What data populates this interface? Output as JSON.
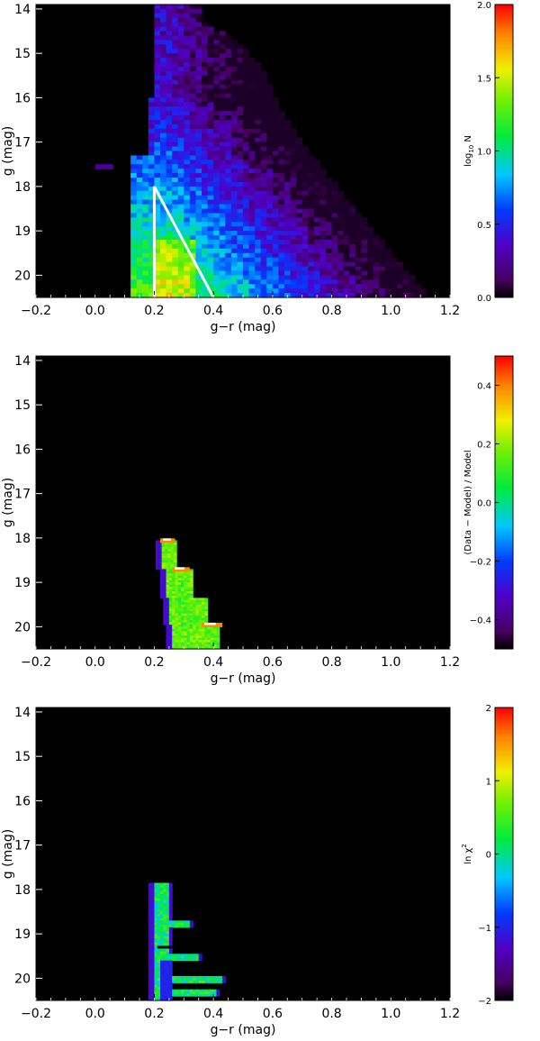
{
  "chart_data": [
    {
      "type": "heatmap",
      "xlabel": "g−r (mag)",
      "ylabel": "g (mag)",
      "xlim": [
        -0.2,
        1.2
      ],
      "ylim": [
        20.5,
        13.9
      ],
      "x_ticks": [
        "−0.2",
        "0.0",
        "0.2",
        "0.4",
        "0.6",
        "0.8",
        "1.0",
        "1.2"
      ],
      "y_ticks": [
        "14",
        "15",
        "16",
        "17",
        "18",
        "19",
        "20"
      ],
      "colorbar": {
        "label_main": "log",
        "label_sub": "10",
        "label_tail": " N",
        "range": [
          0.0,
          2.0
        ],
        "ticks": [
          "0.0",
          "0.5",
          "1.0",
          "1.5",
          "2.0"
        ]
      },
      "overlay_wedge": {
        "apex": [
          0.2,
          18.0
        ],
        "base": [
          [
            0.2,
            20.5
          ],
          [
            0.4,
            20.5
          ]
        ],
        "color": "#ffffff"
      },
      "density_model": {
        "edge_blue": [
          0.17,
          0.12
        ],
        "edge_red": [
          [
            14.3,
            0.36
          ],
          [
            14.8,
            0.5
          ],
          [
            15.5,
            0.58
          ],
          [
            16.2,
            0.62
          ],
          [
            17.2,
            0.72
          ],
          [
            18.5,
            0.88
          ],
          [
            19.5,
            1.0
          ],
          [
            20.5,
            1.13
          ]
        ],
        "peak": [
          0.27,
          20.2
        ],
        "peak_value": 2.0
      }
    },
    {
      "type": "heatmap",
      "xlabel": "g−r (mag)",
      "ylabel": "g (mag)",
      "xlim": [
        -0.2,
        1.2
      ],
      "ylim": [
        20.5,
        13.9
      ],
      "x_ticks": [
        "−0.2",
        "0.0",
        "0.2",
        "0.4",
        "0.6",
        "0.8",
        "1.0",
        "1.2"
      ],
      "y_ticks": [
        "14",
        "15",
        "16",
        "17",
        "18",
        "19",
        "20"
      ],
      "colorbar": {
        "label_main": "(Data − Model) / Model",
        "range": [
          -0.5,
          0.5
        ],
        "ticks": [
          "−0.4",
          "−0.2",
          "0.0",
          "0.2",
          "0.4"
        ]
      },
      "region_value": 0.15,
      "steps": [
        [
          18.05,
          0.205,
          0.27
        ],
        [
          18.7,
          0.22,
          0.33
        ],
        [
          19.35,
          0.23,
          0.38
        ],
        [
          19.95,
          0.24,
          0.42
        ],
        [
          20.5,
          0.24,
          0.43
        ]
      ],
      "highlights": [
        [
          18.05,
          0.22,
          0.27
        ],
        [
          18.7,
          0.26,
          0.32
        ],
        [
          19.95,
          0.36,
          0.43
        ]
      ]
    },
    {
      "type": "heatmap",
      "xlabel": "g−r (mag)",
      "ylabel": "g (mag)",
      "xlim": [
        -0.2,
        1.2
      ],
      "ylim": [
        20.5,
        13.9
      ],
      "x_ticks": [
        "−0.2",
        "0.0",
        "0.2",
        "0.4",
        "0.6",
        "0.8",
        "1.0",
        "1.2"
      ],
      "y_ticks": [
        "14",
        "15",
        "16",
        "17",
        "18",
        "19",
        "20"
      ],
      "colorbar": {
        "label_main": "ln χ",
        "label_sup": "2",
        "range": [
          -2.0,
          2.0
        ],
        "ticks": [
          "−2",
          "−1",
          "0",
          "1",
          "2"
        ]
      },
      "region": {
        "g_top": 17.85,
        "g_bottom": 20.5,
        "x_left": 0.18,
        "x_right": 0.26
      },
      "spikes": [
        [
          18.75,
          0.33
        ],
        [
          19.5,
          0.36
        ],
        [
          20.0,
          0.44
        ],
        [
          20.3,
          0.42
        ]
      ],
      "dark_stripe": [
        19.3,
        0.21,
        0.33
      ],
      "region_value": 0.1
    }
  ]
}
